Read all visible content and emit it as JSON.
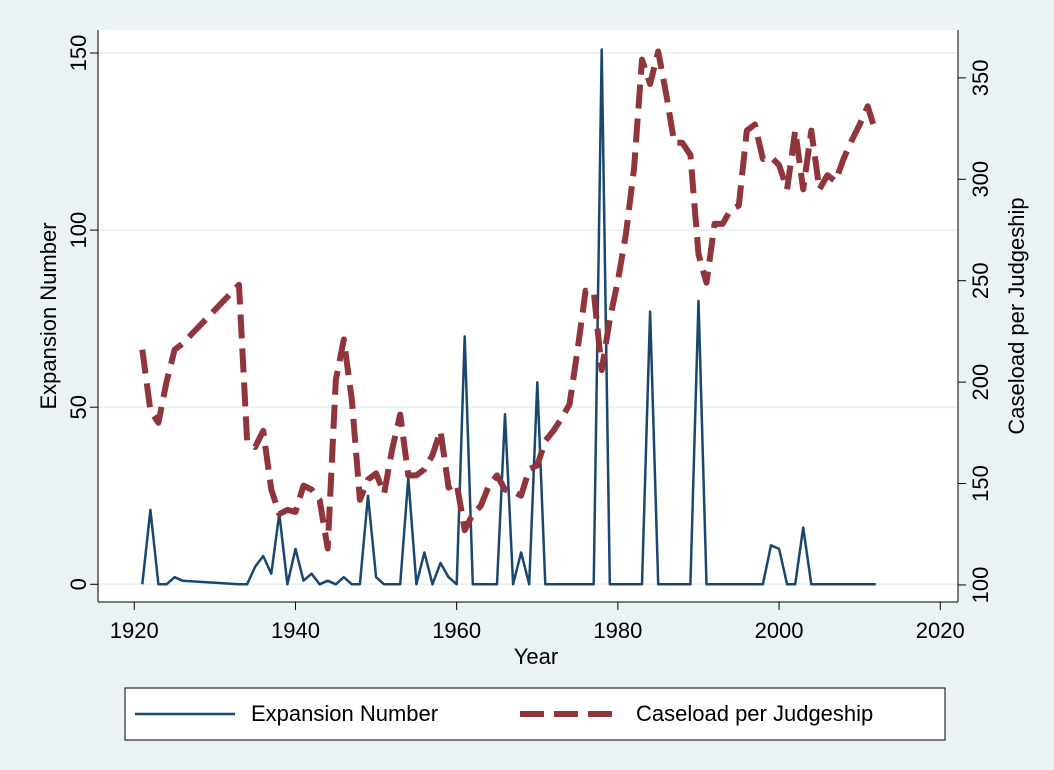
{
  "chart_data": {
    "type": "line",
    "xlabel": "Year",
    "ylabel": "Expansion Number",
    "y2label": "Caseload per Judgeship",
    "x": [
      1921,
      1922,
      1923,
      1924,
      1925,
      1926,
      1933,
      1934,
      1935,
      1936,
      1937,
      1938,
      1939,
      1940,
      1941,
      1942,
      1943,
      1944,
      1945,
      1946,
      1947,
      1948,
      1949,
      1950,
      1951,
      1952,
      1953,
      1954,
      1955,
      1956,
      1957,
      1958,
      1959,
      1960,
      1961,
      1962,
      1963,
      1964,
      1965,
      1966,
      1967,
      1968,
      1969,
      1970,
      1971,
      1972,
      1973,
      1974,
      1975,
      1976,
      1977,
      1978,
      1979,
      1980,
      1981,
      1982,
      1983,
      1984,
      1985,
      1986,
      1987,
      1988,
      1989,
      1990,
      1991,
      1992,
      1993,
      1994,
      1995,
      1996,
      1997,
      1998,
      1999,
      2000,
      2001,
      2002,
      2003,
      2004,
      2005,
      2006,
      2007,
      2008,
      2009,
      2010,
      2011,
      2012
    ],
    "series": [
      {
        "name": "Expansion Number",
        "color": "#1a476f",
        "axis": "y",
        "dashed": false,
        "values": [
          0,
          21,
          0,
          0,
          2,
          1,
          0,
          0,
          5,
          8,
          3,
          20,
          0,
          10,
          1,
          3,
          0,
          1,
          0,
          2,
          0,
          0,
          25,
          2,
          0,
          0,
          0,
          30,
          0,
          9,
          0,
          6,
          2,
          0,
          70,
          0,
          0,
          0,
          0,
          48,
          0,
          9,
          0,
          57,
          0,
          0,
          0,
          0,
          0,
          0,
          0,
          151,
          0,
          0,
          0,
          0,
          0,
          77,
          0,
          0,
          0,
          0,
          0,
          80,
          0,
          0,
          0,
          0,
          0,
          0,
          0,
          0,
          11,
          10,
          0,
          0,
          16,
          0,
          0,
          0,
          0,
          0,
          0,
          0,
          0,
          0
        ]
      },
      {
        "name": "Caseload per Judgeship",
        "color": "#90353b",
        "axis": "y2",
        "dashed": true,
        "values": [
          216,
          186,
          180,
          200,
          216,
          219,
          248,
          171,
          168,
          176,
          147,
          135,
          137,
          136,
          149,
          147,
          142,
          118,
          201,
          221,
          191,
          142,
          152,
          155,
          145,
          167,
          184,
          154,
          154,
          157,
          164,
          176,
          148,
          150,
          127,
          135,
          139,
          149,
          154,
          147,
          146,
          144,
          157,
          159,
          171,
          176,
          182,
          189,
          216,
          245,
          245,
          206,
          231,
          250,
          273,
          305,
          359,
          347,
          363,
          342,
          318,
          318,
          312,
          263,
          249,
          278,
          278,
          285,
          287,
          324,
          327,
          310,
          311,
          307,
          295,
          324,
          295,
          324,
          295,
          302,
          299,
          310,
          319,
          327,
          336,
          323
        ]
      }
    ],
    "xlim": [
      1915.5,
      2022.2
    ],
    "xticks": [
      1920,
      1940,
      1960,
      1980,
      2000,
      2020
    ],
    "ylim": [
      -5,
      156.5
    ],
    "yticks": [
      0,
      50,
      100,
      150
    ],
    "y2lim": [
      91.6,
      373.6
    ],
    "y2ticks": [
      100,
      150,
      200,
      250,
      300,
      350
    ],
    "grid": true,
    "legend": "bottom"
  }
}
